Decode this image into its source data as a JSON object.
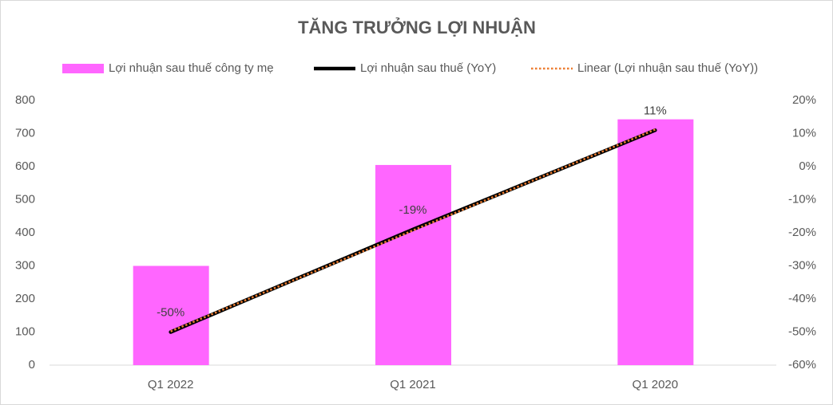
{
  "chart_data": {
    "type": "bar",
    "title": "TĂNG TRƯỞNG LỢI NHUẬN",
    "categories": [
      "Q1 2022",
      "Q1 2021",
      "Q1 2020"
    ],
    "series": [
      {
        "name": "Lợi nhuận sau thuế công ty mẹ",
        "type": "bar",
        "color": "#ff66ff",
        "values": [
          300,
          605,
          743
        ]
      },
      {
        "name": "Lợi nhuận sau thuế (YoY)",
        "type": "line",
        "axis": "y2",
        "color": "#000000",
        "values": [
          -50,
          -19,
          11
        ],
        "value_labels": [
          "-50%",
          "-19%",
          "11%"
        ]
      },
      {
        "name": "Linear (Lợi nhuận sau thuế (YoY))",
        "type": "line",
        "axis": "y2",
        "color": "#ed7d31",
        "dashed": true,
        "values": [
          -49.8,
          -19.3,
          11.2
        ]
      }
    ],
    "ylim": [
      0,
      800
    ],
    "yticks": [
      0,
      100,
      200,
      300,
      400,
      500,
      600,
      700,
      800
    ],
    "y2lim": [
      -60,
      20
    ],
    "y2ticks": [
      {
        "value": -60,
        "label": "-60%"
      },
      {
        "value": -50,
        "label": "-50%"
      },
      {
        "value": -40,
        "label": "-40%"
      },
      {
        "value": -30,
        "label": "-30%"
      },
      {
        "value": -20,
        "label": "-20%"
      },
      {
        "value": -10,
        "label": "-10%"
      },
      {
        "value": 0,
        "label": "0%"
      },
      {
        "value": 10,
        "label": "10%"
      },
      {
        "value": 20,
        "label": "20%"
      }
    ],
    "grid": false,
    "legend": "top"
  }
}
